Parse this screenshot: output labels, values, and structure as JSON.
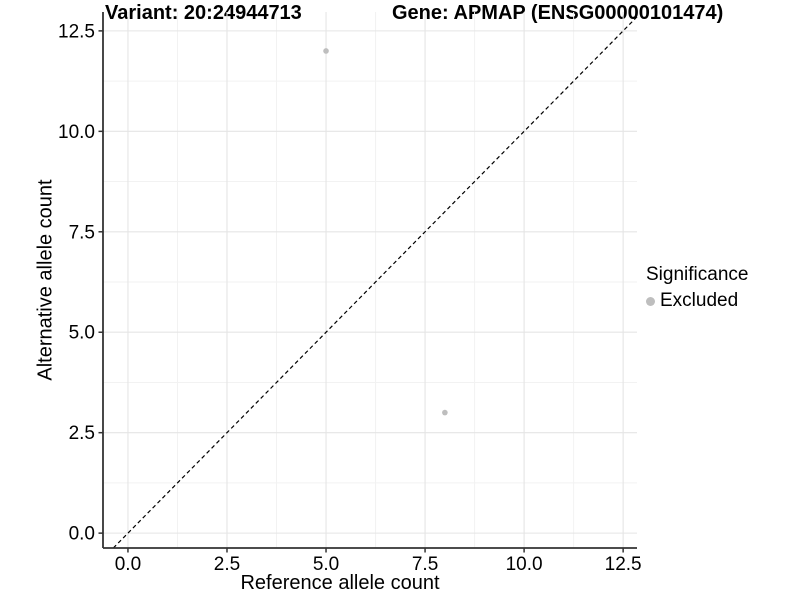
{
  "chart_data": {
    "type": "scatter",
    "title_left": "Variant: 20:24944713",
    "title_right": "Gene: APMAP (ENSG00000101474)",
    "xlabel": "Reference allele count",
    "ylabel": "Alternative allele count",
    "xlim": [
      -0.63,
      12.85
    ],
    "ylim": [
      -0.37,
      12.97
    ],
    "x_ticks": [
      0,
      2.5,
      5,
      7.5,
      10,
      12.5
    ],
    "x_tick_labels": [
      "0.0",
      "2.5",
      "5.0",
      "7.5",
      "10.0",
      "12.5"
    ],
    "y_ticks": [
      0,
      2.5,
      5,
      7.5,
      10,
      12.5
    ],
    "y_tick_labels": [
      "0.0",
      "2.5",
      "5.0",
      "7.5",
      "10.0",
      "12.5"
    ],
    "grid": "major+minor",
    "series": [
      {
        "name": "Excluded",
        "color": "#bebebe",
        "points": [
          {
            "x": 5,
            "y": 12
          },
          {
            "x": 8,
            "y": 3
          }
        ]
      }
    ],
    "reference_line": {
      "type": "identity y=x",
      "style": "dashed",
      "color": "#000000"
    },
    "legend": {
      "position": "right",
      "title": "Significance",
      "entries": [
        {
          "label": "Excluded",
          "color": "#bebebe"
        }
      ]
    },
    "colors": {
      "grid_major": "#e5e5e5",
      "grid_minor": "#f2f2f2",
      "axis": "#333333",
      "text": "#000000"
    }
  }
}
